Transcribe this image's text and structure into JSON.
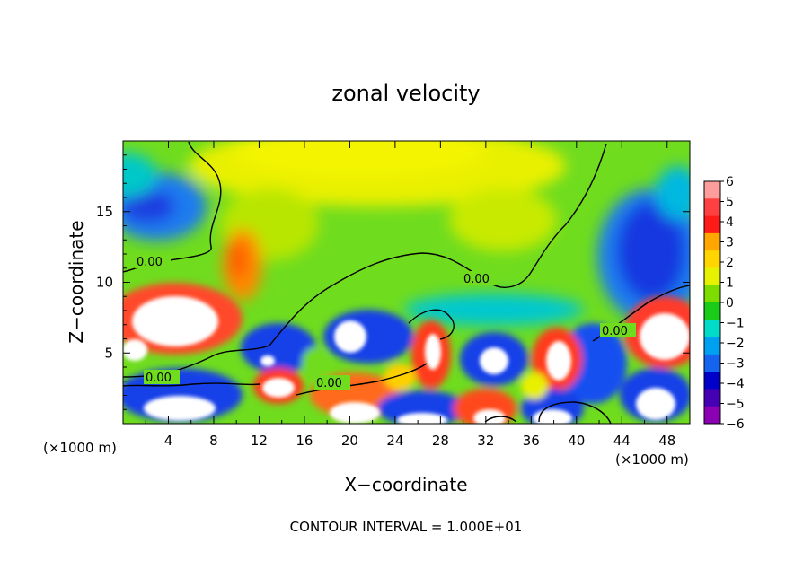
{
  "chart_data": {
    "type": "heatmap",
    "title": "zonal velocity",
    "xlabel": "X−coordinate",
    "ylabel": "Z−coordinate",
    "x_unit": "(×1000 m)",
    "x_unit_right": "(×1000 m)",
    "xlim": [
      0,
      50
    ],
    "ylim": [
      0,
      20
    ],
    "x_ticks": [
      4,
      8,
      12,
      16,
      20,
      24,
      28,
      32,
      36,
      40,
      44,
      48
    ],
    "y_ticks": [
      5,
      10,
      15
    ],
    "colorbar": {
      "ticks": [
        "6",
        "5",
        "4",
        "3",
        "2",
        "1",
        "0",
        "−1",
        "−2",
        "−3",
        "−4",
        "−5",
        "−6"
      ],
      "colors": [
        "#ff9c9c",
        "#ff4040",
        "#ff1a1a",
        "#ffa600",
        "#ffd500",
        "#e6f200",
        "#7ddc00",
        "#18cc18",
        "#00dcc8",
        "#00a0f0",
        "#1464f0",
        "#0000c8",
        "#4600b4",
        "#8c00b4"
      ]
    },
    "contour_labels": [
      "0.00",
      "0.00",
      "0.00",
      "0.00",
      "0.00"
    ],
    "footer": "CONTOUR INTERVAL = 1.000E+01"
  }
}
